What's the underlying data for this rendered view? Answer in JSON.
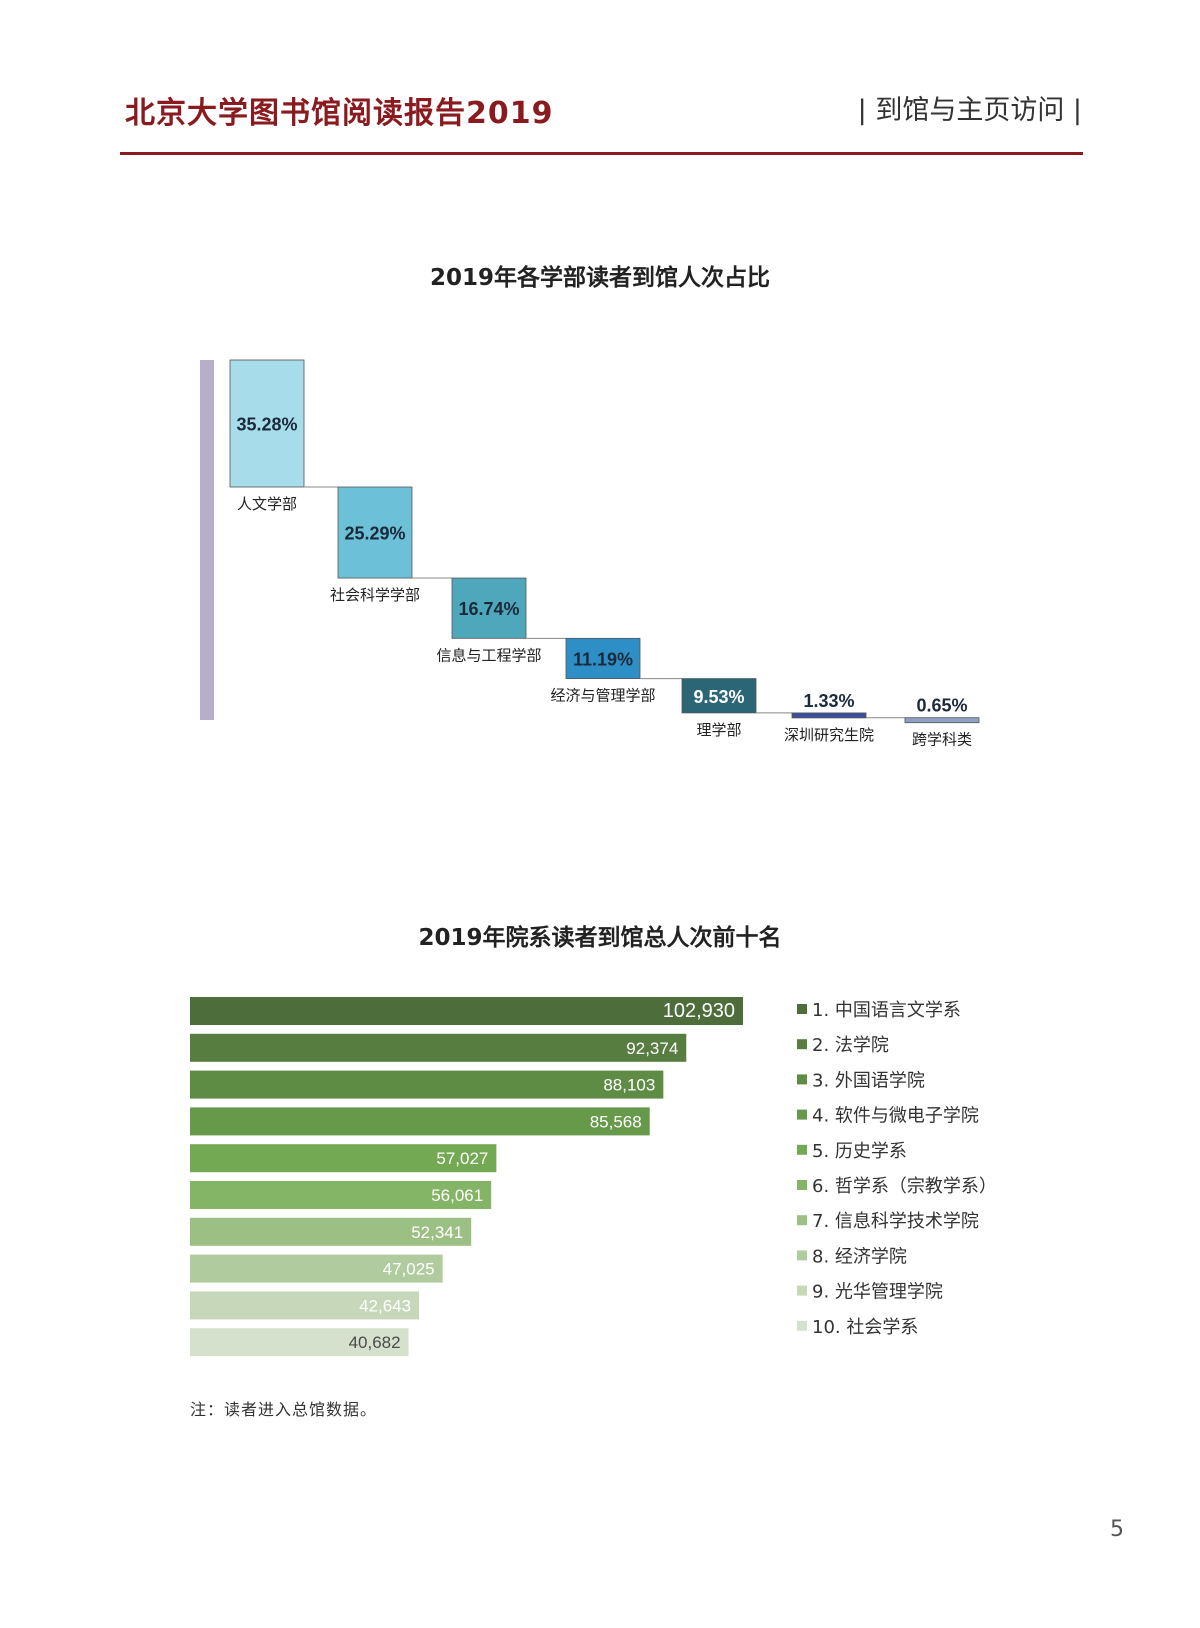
{
  "header": {
    "title": "北京大学图书馆阅读报告2019",
    "section": "| 到馆与主页访问 |",
    "accent_color": "#8b1a1f"
  },
  "page_number": "5",
  "note": "注：读者进入总馆数据。",
  "chart_data": [
    {
      "type": "bar",
      "subtype": "waterfall",
      "title": "2019年各学部读者到馆人次占比",
      "categories": [
        "人文学部",
        "社会科学学部",
        "信息与工程学部",
        "经济与管理学部",
        "理学部",
        "深圳研究生院",
        "跨学科类"
      ],
      "values": [
        35.28,
        25.29,
        16.74,
        11.19,
        9.53,
        1.33,
        0.65
      ],
      "value_labels": [
        "35.28%",
        "25.29%",
        "16.74%",
        "11.19%",
        "9.53%",
        "1.33%",
        "0.65%"
      ],
      "unit": "%",
      "total": 100,
      "colors": [
        "#a7dcea",
        "#6cc0d8",
        "#4fa7bb",
        "#2e8fc6",
        "#2a6676",
        "#3b4fa0",
        "#8ea0c8"
      ],
      "total_bar_color": "#b9aec9"
    },
    {
      "type": "bar",
      "orientation": "horizontal",
      "title": "2019年院系读者到馆总人次前十名",
      "categories": [
        "中国语言文学系",
        "法学院",
        "外国语学院",
        "软件与微电子学院",
        "历史学系",
        "哲学系（宗教学系）",
        "信息科学技术学院",
        "经济学院",
        "光华管理学院",
        "社会学系"
      ],
      "legend_labels": [
        "1. 中国语言文学系",
        "2. 法学院",
        "3. 外国语学院",
        "4. 软件与微电子学院",
        "5. 历史学系",
        "6. 哲学系（宗教学系）",
        "7. 信息科学技术学院",
        "8. 经济学院",
        "9. 光华管理学院",
        "10. 社会学系"
      ],
      "values": [
        102930,
        92374,
        88103,
        85568,
        57027,
        56061,
        52341,
        47025,
        42643,
        40682
      ],
      "value_labels": [
        "102,930",
        "92,374",
        "88,103",
        "85,568",
        "57,027",
        "56,061",
        "52,341",
        "47,025",
        "42,643",
        "40,682"
      ],
      "colors": [
        "#4d6e3b",
        "#587d40",
        "#5f8c44",
        "#66994a",
        "#74a954",
        "#84b465",
        "#9cc084",
        "#b0cb9e",
        "#c6d8b9",
        "#d5e1cd"
      ],
      "legend_position": "right"
    }
  ]
}
